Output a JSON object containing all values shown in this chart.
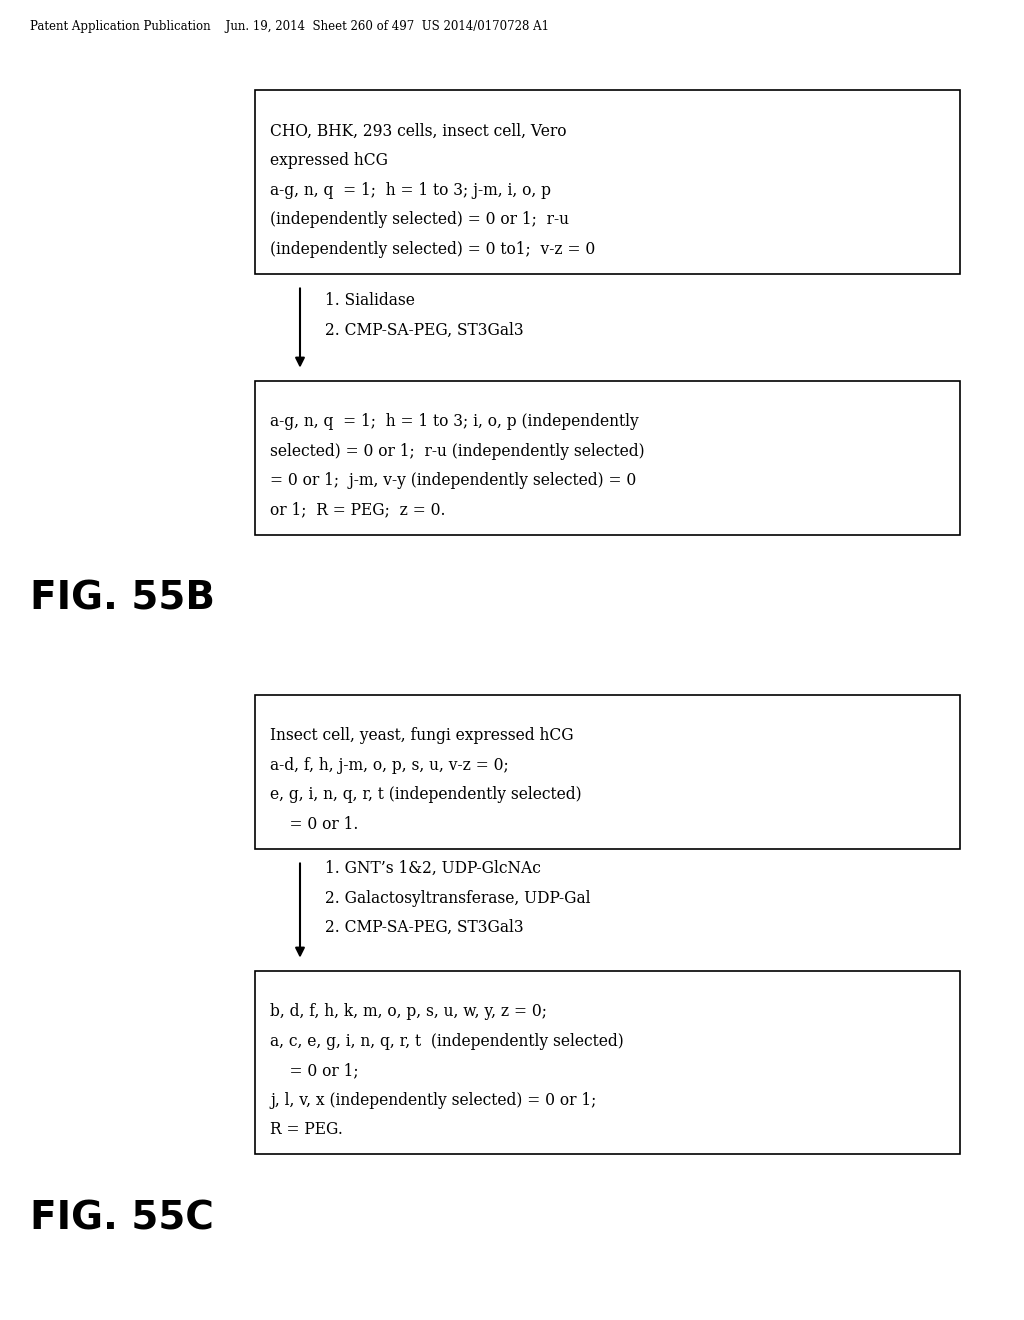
{
  "header_text": "Patent Application Publication    Jun. 19, 2014  Sheet 260 of 497  US 2014/0170728 A1",
  "background_color": "#ffffff",
  "box1_lines": [
    "CHO, BHK, 293 cells, insect cell, Vero",
    "expressed hCG",
    "a-g, n, q  = 1;  h = 1 to 3; j-m, i, o, p",
    "(independently selected) = 0 or 1;  r-u",
    "(independently selected) = 0 to1;  v-z = 0"
  ],
  "arrow1_lines": [
    "1. Sialidase",
    "2. CMP-SA-PEG, ST3Gal3"
  ],
  "box2_lines": [
    "a-g, n, q  = 1;  h = 1 to 3; i, o, p (independently",
    "selected) = 0 or 1;  r-u (independently selected)",
    "= 0 or 1;  j-m, v-y (independently selected) = 0",
    "or 1;  R = PEG;  z = 0."
  ],
  "fig_label_B": "FIG. 55B",
  "box3_lines": [
    "Insect cell, yeast, fungi expressed hCG",
    "a-d, f, h, j-m, o, p, s, u, v-z = 0;",
    "e, g, i, n, q, r, t (independently selected)",
    "    = 0 or 1."
  ],
  "arrow2_lines": [
    "1. GNT’s 1&2, UDP-GlcNAc",
    "2. Galactosyltransferase, UDP-Gal",
    "2. CMP-SA-PEG, ST3Gal3"
  ],
  "box4_lines": [
    "b, d, f, h, k, m, o, p, s, u, w, y, z = 0;",
    "a, c, e, g, i, n, q, r, t  (independently selected)",
    "    = 0 or 1;",
    "j, l, v, x (independently selected) = 0 or 1;",
    "R = PEG."
  ],
  "fig_label_C": "FIG. 55C"
}
